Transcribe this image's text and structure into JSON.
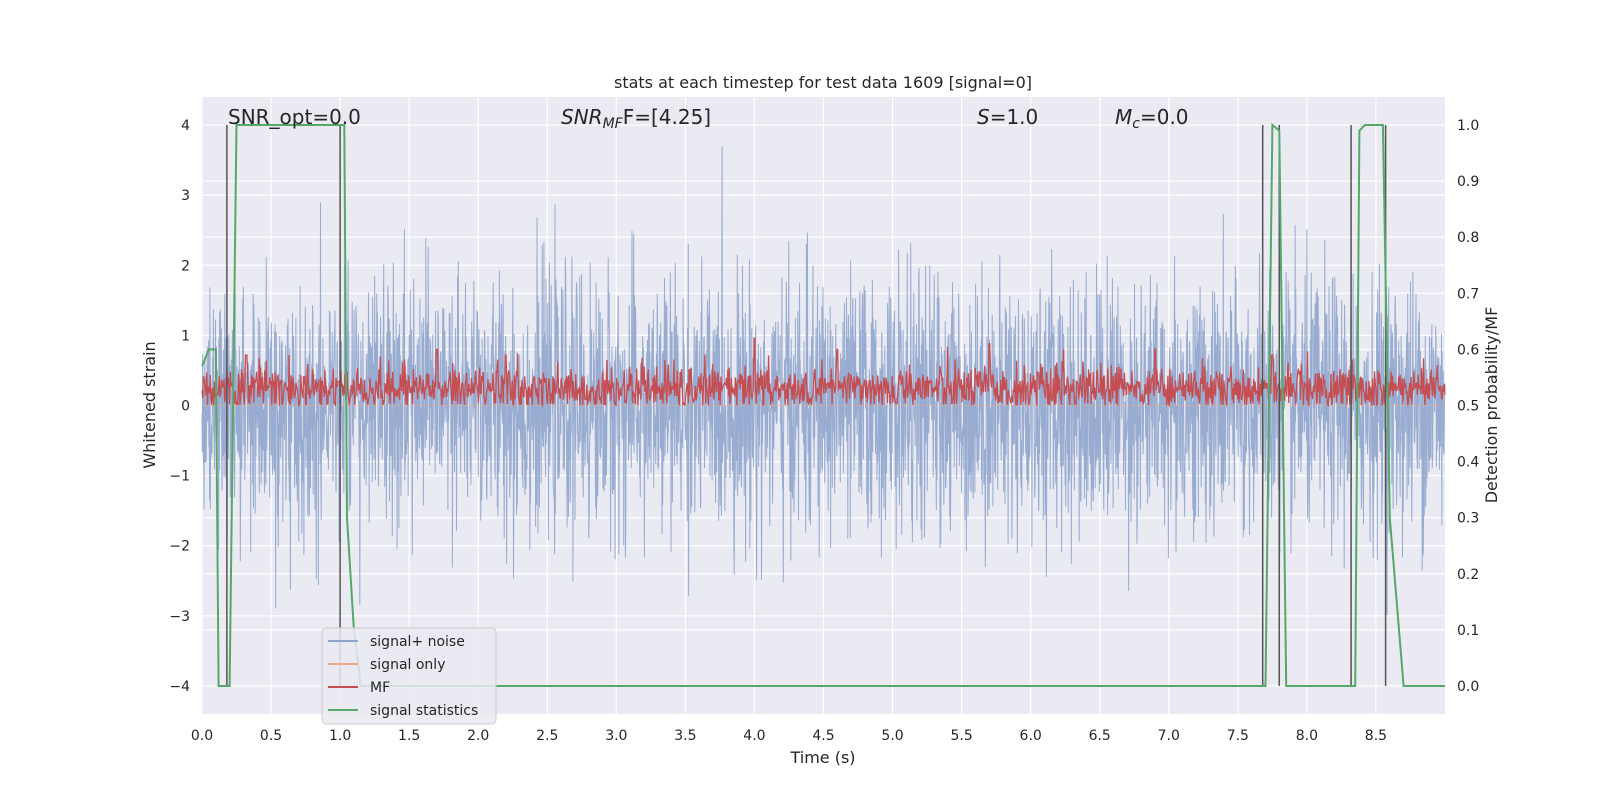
{
  "chart_data": {
    "type": "line",
    "title": "stats at each timestep for test data 1609 [signal=0]",
    "xlabel": "Time (s)",
    "ylabel_left": "Whitened strain",
    "ylabel_right": "Detection probability/MF",
    "xlim": [
      0.0,
      9.0
    ],
    "ylim_left": [
      -4.4,
      4.4
    ],
    "ylim_right": [
      -0.05,
      1.05
    ],
    "x_ticks": [
      0.0,
      0.5,
      1.0,
      1.5,
      2.0,
      2.5,
      3.0,
      3.5,
      4.0,
      4.5,
      5.0,
      5.5,
      6.0,
      6.5,
      7.0,
      7.5,
      8.0,
      8.5
    ],
    "x_tick_labels": [
      "0.0",
      "0.5",
      "1.0",
      "1.5",
      "2.0",
      "2.5",
      "3.0",
      "3.5",
      "4.0",
      "4.5",
      "5.0",
      "5.5",
      "6.0",
      "6.5",
      "7.0",
      "7.5",
      "8.0",
      "8.5"
    ],
    "y_left_ticks": [
      -4,
      -3,
      -2,
      -1,
      0,
      1,
      2,
      3,
      4
    ],
    "y_left_tick_labels": [
      "−4",
      "−3",
      "−2",
      "−1",
      "0",
      "1",
      "2",
      "3",
      "4"
    ],
    "y_right_ticks": [
      0.0,
      0.1,
      0.2,
      0.3,
      0.4,
      0.5,
      0.6,
      0.7,
      0.8,
      0.9,
      1.0
    ],
    "y_right_tick_labels": [
      "0.0",
      "0.1",
      "0.2",
      "0.3",
      "0.4",
      "0.5",
      "0.6",
      "0.7",
      "0.8",
      "0.9",
      "1.0"
    ],
    "grid": true,
    "background": "#eaeaf2",
    "annotations": {
      "snr_opt": "SNR_opt=0.0",
      "snr_mf_main": "SNR",
      "snr_mf_sub": "MF",
      "snr_mf_value": "F=[4.25]",
      "s_main": "S",
      "s_value": "=1.0",
      "mc_main": "M",
      "mc_sub": "c",
      "mc_value": "=0.0"
    },
    "legend": {
      "placement": "lower-left",
      "entries": [
        {
          "label": "signal+ noise",
          "color": "#8fa4cc"
        },
        {
          "label": "signal only",
          "color": "#e8a88a"
        },
        {
          "label": "MF",
          "color": "#c44e52"
        },
        {
          "label": "signal statistics",
          "color": "#55a868"
        }
      ]
    },
    "series": [
      {
        "name": "signal+ noise",
        "color": "#8fa4cc",
        "axis": "left",
        "note": "noise-like whitened strain, dense band roughly within ±2.5 with spikes up to ±3.7"
      },
      {
        "name": "signal only",
        "color": "#e8a88a",
        "axis": "left",
        "values_constant": 0
      },
      {
        "name": "MF",
        "color": "#c44e52",
        "axis": "right",
        "typical_range": [
          0.5,
          0.56
        ],
        "spikes": [
          {
            "x": 0.32,
            "y": 0.59
          },
          {
            "x": 1.7,
            "y": 0.6
          },
          {
            "x": 2.2,
            "y": 0.59
          },
          {
            "x": 4.0,
            "y": 0.62
          },
          {
            "x": 4.6,
            "y": 0.6
          },
          {
            "x": 5.7,
            "y": 0.61
          },
          {
            "x": 6.9,
            "y": 0.6
          },
          {
            "x": 7.75,
            "y": 0.59
          }
        ]
      },
      {
        "name": "signal statistics",
        "color": "#55a868",
        "axis": "right",
        "x": [
          0.0,
          0.05,
          0.1,
          0.12,
          0.18,
          0.2,
          0.25,
          1.0,
          1.03,
          1.05,
          1.1,
          1.15,
          7.65,
          7.7,
          7.75,
          7.8,
          7.85,
          8.3,
          8.35,
          8.38,
          8.42,
          8.55,
          8.6,
          8.7,
          9.0
        ],
        "y": [
          0.57,
          0.6,
          0.6,
          0.0,
          0.0,
          0.0,
          1.0,
          1.0,
          1.0,
          0.3,
          0.1,
          0.0,
          0.0,
          0.0,
          1.0,
          0.99,
          0.0,
          0.0,
          0.0,
          0.99,
          1.0,
          1.0,
          0.3,
          0.0,
          0.0
        ]
      }
    ],
    "vertical_lines": {
      "color": "#555555",
      "x": [
        0.18,
        1.0,
        7.68,
        7.8,
        8.32,
        8.57
      ],
      "y_range_right": [
        0.0,
        1.0
      ]
    }
  }
}
